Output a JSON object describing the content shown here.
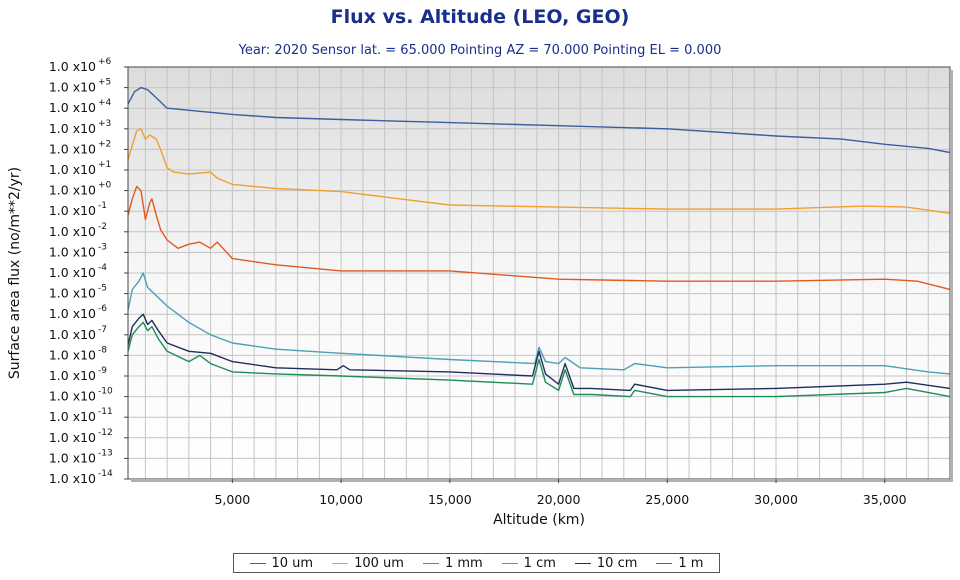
{
  "title": "Flux vs. Altitude (LEO, GEO)",
  "subtitle": "Year: 2020  Sensor lat. =  65.000  Pointing AZ =  70.000  Pointing EL =   0.000",
  "chart_data": {
    "type": "line",
    "title": "Flux vs. Altitude (LEO, GEO)",
    "subtitle": "Year: 2020  Sensor lat. =  65.000  Pointing AZ =  70.000  Pointing EL =   0.000",
    "xlabel": "Altitude (km)",
    "ylabel": "Surface area flux (no/m**2/yr)",
    "xlim": [
      200,
      38000
    ],
    "ylim_exponent": [
      -14,
      6
    ],
    "y_scale": "log10",
    "grid": true,
    "legend_position": "bottom",
    "x_ticks": [
      5000,
      10000,
      15000,
      20000,
      25000,
      30000,
      35000
    ],
    "x_tick_labels": [
      "5,000",
      "10,000",
      "15,000",
      "20,000",
      "25,000",
      "30,000",
      "35,000"
    ],
    "y_tick_mantissa": "1.0 x10",
    "y_tick_exponents": [
      "+6",
      "+5",
      "+4",
      "+3",
      "+2",
      "+1",
      "+0",
      "-1",
      "-2",
      "-3",
      "-4",
      "-5",
      "-6",
      "-7",
      "-8",
      "-9",
      "-10",
      "-11",
      "-12",
      "-13",
      "-14"
    ],
    "series": [
      {
        "name": "10 um",
        "color": "#3a5f9e",
        "x": [
          200,
          500,
          800,
          1100,
          1400,
          1700,
          2000,
          2500,
          3000,
          4000,
          5000,
          7000,
          10000,
          15000,
          20000,
          25000,
          30000,
          33000,
          35000,
          37000,
          38000
        ],
        "log10_y": [
          4.2,
          4.8,
          5.0,
          4.9,
          4.6,
          4.3,
          4.0,
          3.95,
          3.9,
          3.8,
          3.7,
          3.55,
          3.45,
          3.3,
          3.15,
          3.0,
          2.65,
          2.5,
          2.25,
          2.05,
          1.85
        ]
      },
      {
        "name": "100 um",
        "color": "#f0a030",
        "x": [
          200,
          400,
          600,
          800,
          1000,
          1200,
          1500,
          1700,
          2000,
          2300,
          3000,
          3500,
          4000,
          4300,
          5000,
          7000,
          10000,
          15000,
          20000,
          25000,
          30000,
          34000,
          36000,
          38000
        ],
        "log10_y": [
          1.5,
          2.2,
          2.9,
          3.0,
          2.5,
          2.7,
          2.5,
          2.0,
          1.1,
          0.9,
          0.8,
          0.85,
          0.9,
          0.6,
          0.3,
          0.1,
          -0.05,
          -0.7,
          -0.8,
          -0.9,
          -0.9,
          -0.75,
          -0.8,
          -1.1
        ]
      },
      {
        "name": "1 mm",
        "color": "#e05a20",
        "x": [
          200,
          400,
          600,
          800,
          1000,
          1200,
          1300,
          1500,
          1700,
          2000,
          2500,
          3000,
          3500,
          4000,
          4300,
          5000,
          7000,
          10000,
          12000,
          15000,
          20000,
          25000,
          30000,
          35000,
          36500,
          38000
        ],
        "log10_y": [
          -1.2,
          -0.4,
          0.2,
          0.0,
          -1.4,
          -0.6,
          -0.4,
          -1.2,
          -1.9,
          -2.4,
          -2.8,
          -2.6,
          -2.5,
          -2.8,
          -2.5,
          -3.3,
          -3.6,
          -3.9,
          -3.9,
          -3.9,
          -4.3,
          -4.4,
          -4.4,
          -4.3,
          -4.4,
          -4.8
        ]
      },
      {
        "name": "1 cm",
        "color": "#4aa0b8",
        "x": [
          200,
          400,
          700,
          900,
          1100,
          1300,
          1600,
          2000,
          3000,
          4000,
          5000,
          7000,
          10000,
          15000,
          18900,
          19100,
          19400,
          20000,
          20300,
          21000,
          23000,
          23500,
          25000,
          30000,
          35000,
          37000,
          38000
        ],
        "log10_y": [
          -5.8,
          -4.8,
          -4.4,
          -4.0,
          -4.7,
          -4.9,
          -5.2,
          -5.6,
          -6.4,
          -7.0,
          -7.4,
          -7.7,
          -7.9,
          -8.2,
          -8.4,
          -7.6,
          -8.3,
          -8.4,
          -8.1,
          -8.6,
          -8.7,
          -8.4,
          -8.6,
          -8.5,
          -8.5,
          -8.8,
          -8.9
        ]
      },
      {
        "name": "10 cm",
        "color": "#1f2e5f",
        "x": [
          200,
          400,
          700,
          900,
          1100,
          1300,
          1600,
          2000,
          3000,
          4000,
          5000,
          7000,
          9800,
          10100,
          10400,
          15000,
          18800,
          19100,
          19400,
          20000,
          20300,
          20700,
          21500,
          23300,
          23500,
          25000,
          30000,
          35000,
          36000,
          38000
        ],
        "log10_y": [
          -7.5,
          -6.6,
          -6.2,
          -6.0,
          -6.5,
          -6.3,
          -6.8,
          -7.4,
          -7.8,
          -7.9,
          -8.3,
          -8.6,
          -8.7,
          -8.5,
          -8.7,
          -8.8,
          -9.0,
          -7.8,
          -8.9,
          -9.4,
          -8.4,
          -9.6,
          -9.6,
          -9.7,
          -9.4,
          -9.7,
          -9.6,
          -9.4,
          -9.3,
          -9.6
        ]
      },
      {
        "name": "1 m",
        "color": "#1f8a5a",
        "x": [
          200,
          400,
          700,
          900,
          1100,
          1300,
          1600,
          2000,
          3000,
          3500,
          4000,
          5000,
          7000,
          10000,
          15000,
          18800,
          19100,
          19400,
          20000,
          20300,
          20700,
          21500,
          23300,
          23500,
          25000,
          30000,
          35000,
          36000,
          38000
        ],
        "log10_y": [
          -7.8,
          -7.0,
          -6.6,
          -6.4,
          -6.8,
          -6.6,
          -7.2,
          -7.8,
          -8.3,
          -8.0,
          -8.4,
          -8.8,
          -8.9,
          -9.0,
          -9.2,
          -9.4,
          -8.2,
          -9.3,
          -9.7,
          -8.7,
          -9.9,
          -9.9,
          -10.0,
          -9.7,
          -10.0,
          -10.0,
          -9.8,
          -9.6,
          -10.0
        ]
      }
    ]
  },
  "legend": {
    "items": [
      {
        "label": "10 um",
        "color": "#3a5f9e"
      },
      {
        "label": "100 um",
        "color": "#f0a030"
      },
      {
        "label": "1 mm",
        "color": "#e05a20"
      },
      {
        "label": "1 cm",
        "color": "#4aa0b8"
      },
      {
        "label": "10 cm",
        "color": "#1f2e5f"
      },
      {
        "label": "1 m",
        "color": "#1f8a5a"
      }
    ]
  }
}
